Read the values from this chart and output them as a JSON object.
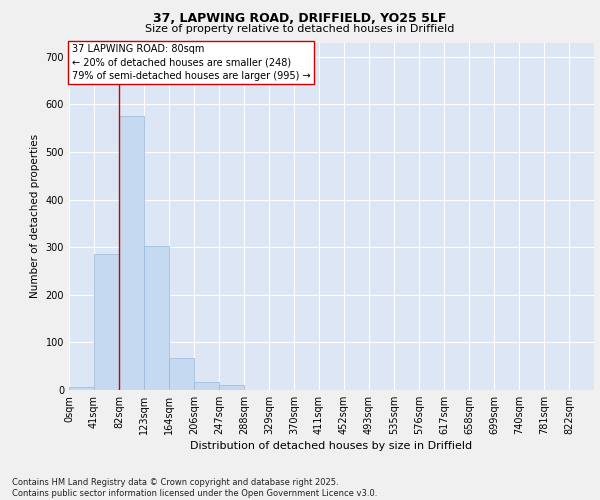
{
  "title_line1": "37, LAPWING ROAD, DRIFFIELD, YO25 5LF",
  "title_line2": "Size of property relative to detached houses in Driffield",
  "xlabel": "Distribution of detached houses by size in Driffield",
  "ylabel": "Number of detached properties",
  "footnote": "Contains HM Land Registry data © Crown copyright and database right 2025.\nContains public sector information licensed under the Open Government Licence v3.0.",
  "bar_labels": [
    "0sqm",
    "41sqm",
    "82sqm",
    "123sqm",
    "164sqm",
    "206sqm",
    "247sqm",
    "288sqm",
    "329sqm",
    "370sqm",
    "411sqm",
    "452sqm",
    "493sqm",
    "535sqm",
    "576sqm",
    "617sqm",
    "658sqm",
    "699sqm",
    "740sqm",
    "781sqm",
    "822sqm"
  ],
  "bar_values": [
    7,
    285,
    575,
    302,
    68,
    16,
    10,
    0,
    0,
    0,
    0,
    0,
    0,
    0,
    0,
    0,
    0,
    0,
    0,
    0,
    0
  ],
  "bar_color": "#c5d9f1",
  "bar_edge_color": "#9ab7d9",
  "ylim": [
    0,
    730
  ],
  "yticks": [
    0,
    100,
    200,
    300,
    400,
    500,
    600,
    700
  ],
  "vline_x": 2.0,
  "vline_color": "#cc0000",
  "annotation_text": "37 LAPWING ROAD: 80sqm\n← 20% of detached houses are smaller (248)\n79% of semi-detached houses are larger (995) →",
  "bg_color": "#dce6f5",
  "grid_color": "#ffffff",
  "fig_bg_color": "#f0f0f0",
  "title_fontsize": 9,
  "subtitle_fontsize": 8,
  "xlabel_fontsize": 8,
  "ylabel_fontsize": 7.5,
  "tick_fontsize": 7,
  "annot_fontsize": 7,
  "footnote_fontsize": 6
}
